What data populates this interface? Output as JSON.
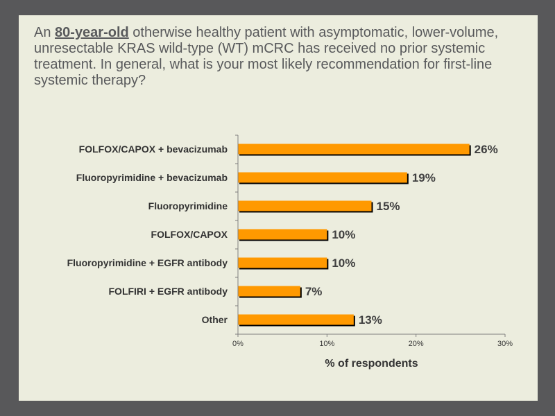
{
  "question": {
    "prefix": "An ",
    "emphasis": "80-year-old",
    "suffix": " otherwise healthy patient with asymptomatic, lower-volume, unresectable KRAS wild-type (WT) mCRC has received no prior systemic treatment. In general, what is your most likely recommendation for first-line systemic therapy?"
  },
  "colors": {
    "bar": "#ff9900",
    "bar_shadow": "#000000",
    "background": "#ecedde",
    "frame": "#58585a"
  },
  "chart_data": {
    "type": "bar",
    "orientation": "horizontal",
    "categories": [
      "FOLFOX/CAPOX + bevacizumab",
      "Fluoropyrimidine + bevacizumab",
      "Fluoropyrimidine",
      "FOLFOX/CAPOX",
      "Fluoropyrimidine + EGFR antibody",
      "FOLFIRI + EGFR antibody",
      "Other"
    ],
    "values": [
      26,
      19,
      15,
      10,
      10,
      7,
      13
    ],
    "value_labels": [
      "26%",
      "19%",
      "15%",
      "10%",
      "10%",
      "7%",
      "13%"
    ],
    "xlabel": "% of respondents",
    "xlim": [
      0,
      30
    ],
    "xticks": [
      0,
      10,
      20,
      30
    ],
    "xtick_labels": [
      "0%",
      "10%",
      "20%",
      "30%"
    ],
    "grid": false,
    "legend": "none"
  }
}
